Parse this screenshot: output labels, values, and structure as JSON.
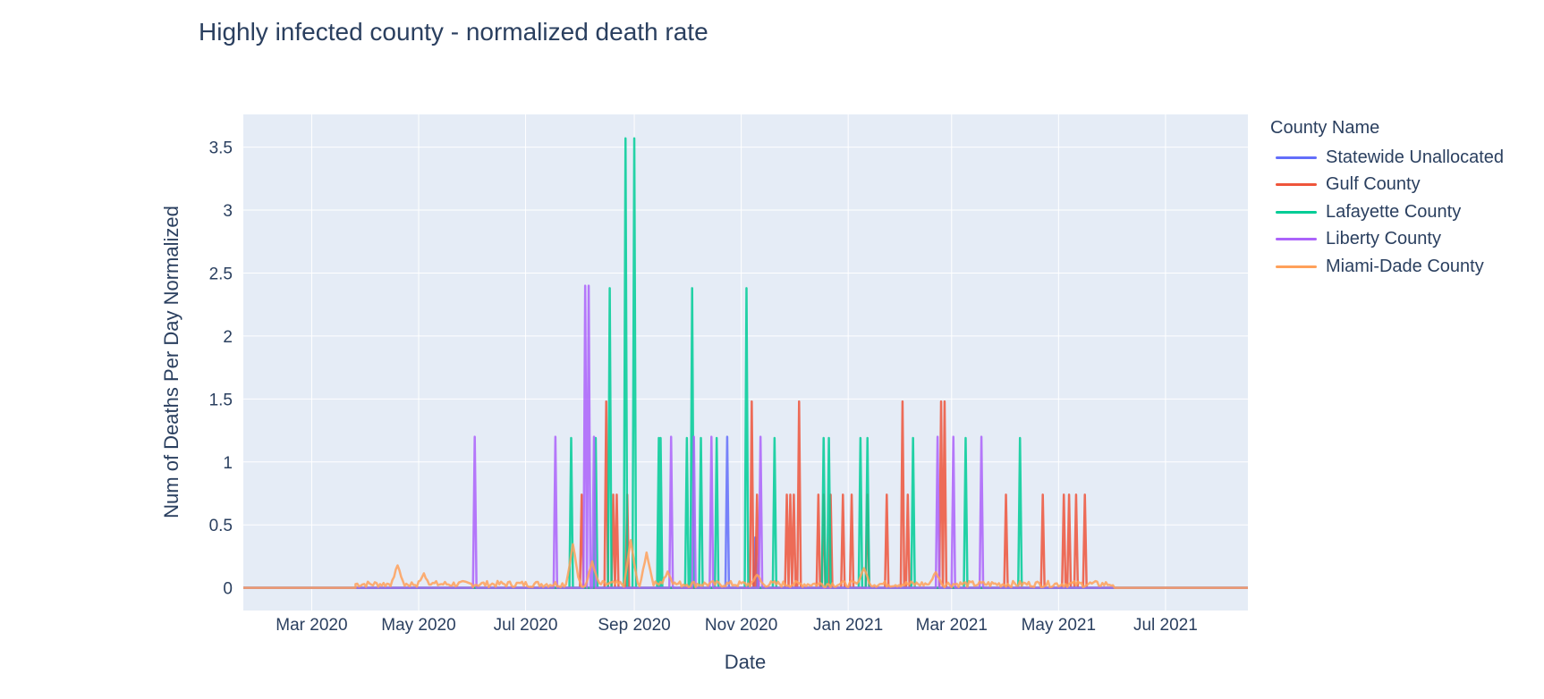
{
  "chart_data": {
    "type": "line",
    "title": "Highly infected county - normalized death rate",
    "xlabel": "Date",
    "ylabel": "Num of Deaths Per Day Normalized",
    "legend_title": "County Name",
    "legend_position": "right",
    "grid": true,
    "x_range": [
      "2020-01-22",
      "2021-08-17"
    ],
    "y_range": [
      -0.18,
      3.76
    ],
    "x_ticks": [
      {
        "date": "2020-03-01",
        "label": "Mar 2020"
      },
      {
        "date": "2020-05-01",
        "label": "May 2020"
      },
      {
        "date": "2020-07-01",
        "label": "Jul 2020"
      },
      {
        "date": "2020-09-01",
        "label": "Sep 2020"
      },
      {
        "date": "2020-11-01",
        "label": "Nov 2020"
      },
      {
        "date": "2021-01-01",
        "label": "Jan 2021"
      },
      {
        "date": "2021-03-01",
        "label": "Mar 2021"
      },
      {
        "date": "2021-05-01",
        "label": "May 2021"
      },
      {
        "date": "2021-07-01",
        "label": "Jul 2021"
      }
    ],
    "y_ticks": [
      {
        "value": 0,
        "label": "0"
      },
      {
        "value": 0.5,
        "label": "0.5"
      },
      {
        "value": 1,
        "label": "1"
      },
      {
        "value": 1.5,
        "label": "1.5"
      },
      {
        "value": 2,
        "label": "2"
      },
      {
        "value": 2.5,
        "label": "2.5"
      },
      {
        "value": 3,
        "label": "3"
      },
      {
        "value": 3.5,
        "label": "3.5"
      }
    ],
    "series": [
      {
        "name": "Statewide Unallocated",
        "color": "#636efa",
        "baseline": [
          "2020-01-22",
          "2021-08-17"
        ],
        "spikes": [
          [
            "2020-10-24",
            1.2
          ],
          [
            "2020-11-09",
            0.4
          ]
        ]
      },
      {
        "name": "Gulf County",
        "color": "#EF553B",
        "baseline": [
          "2020-01-22",
          "2021-08-17"
        ],
        "spikes": [
          [
            "2020-08-02",
            0.74
          ],
          [
            "2020-08-16",
            1.48
          ],
          [
            "2020-08-20",
            0.74
          ],
          [
            "2020-08-22",
            0.74
          ],
          [
            "2020-08-28",
            0.74
          ],
          [
            "2020-11-07",
            1.48
          ],
          [
            "2020-11-10",
            0.74
          ],
          [
            "2020-11-27",
            0.74
          ],
          [
            "2020-11-29",
            0.74
          ],
          [
            "2020-12-01",
            0.74
          ],
          [
            "2020-12-04",
            1.48
          ],
          [
            "2020-12-15",
            0.74
          ],
          [
            "2020-12-18",
            0.74
          ],
          [
            "2020-12-22",
            0.74
          ],
          [
            "2020-12-29",
            0.74
          ],
          [
            "2021-01-03",
            0.74
          ],
          [
            "2021-01-12",
            0.74
          ],
          [
            "2021-01-23",
            0.74
          ],
          [
            "2021-02-01",
            1.48
          ],
          [
            "2021-02-04",
            0.74
          ],
          [
            "2021-02-23",
            1.48
          ],
          [
            "2021-02-25",
            1.48
          ],
          [
            "2021-04-01",
            0.74
          ],
          [
            "2021-04-22",
            0.74
          ],
          [
            "2021-05-04",
            0.74
          ],
          [
            "2021-05-07",
            0.74
          ],
          [
            "2021-05-11",
            0.74
          ],
          [
            "2021-05-16",
            0.74
          ]
        ]
      },
      {
        "name": "Lafayette County",
        "color": "#00cc96",
        "baseline": [
          "2020-01-22",
          "2021-08-17"
        ],
        "spikes": [
          [
            "2020-07-27",
            1.19
          ],
          [
            "2020-08-10",
            1.19
          ],
          [
            "2020-08-18",
            2.38
          ],
          [
            "2020-08-27",
            3.57
          ],
          [
            "2020-09-01",
            3.57
          ],
          [
            "2020-09-15",
            1.19
          ],
          [
            "2020-09-16",
            1.19
          ],
          [
            "2020-10-01",
            1.19
          ],
          [
            "2020-10-04",
            2.38
          ],
          [
            "2020-10-09",
            1.19
          ],
          [
            "2020-10-18",
            1.19
          ],
          [
            "2020-11-04",
            2.38
          ],
          [
            "2020-11-20",
            1.19
          ],
          [
            "2020-12-18",
            1.19
          ],
          [
            "2020-12-21",
            1.19
          ],
          [
            "2021-01-08",
            1.19
          ],
          [
            "2021-01-12",
            1.19
          ],
          [
            "2021-02-07",
            1.19
          ],
          [
            "2021-03-09",
            1.19
          ],
          [
            "2021-04-09",
            1.19
          ]
        ]
      },
      {
        "name": "Liberty County",
        "color": "#ab63fa",
        "baseline": [
          "2020-01-22",
          "2021-08-17"
        ],
        "spikes": [
          [
            "2020-06-02",
            1.2
          ],
          [
            "2020-07-18",
            1.2
          ],
          [
            "2020-08-04",
            2.4
          ],
          [
            "2020-08-06",
            2.4
          ],
          [
            "2020-08-09",
            1.2
          ],
          [
            "2020-09-22",
            1.2
          ],
          [
            "2020-10-05",
            1.2
          ],
          [
            "2020-10-15",
            1.2
          ],
          [
            "2020-11-12",
            1.2
          ],
          [
            "2021-02-21",
            1.2
          ],
          [
            "2021-03-02",
            1.2
          ],
          [
            "2021-03-18",
            1.2
          ]
        ]
      },
      {
        "name": "Miami-Dade County",
        "color": "#FFA15A",
        "start": "2020-03-26",
        "end": "2021-06-01",
        "noise_level": 0.05,
        "peaks": [
          [
            "2020-04-19",
            0.17
          ],
          [
            "2020-05-04",
            0.1
          ],
          [
            "2020-07-28",
            0.34
          ],
          [
            "2020-08-08",
            0.2
          ],
          [
            "2020-08-30",
            0.37
          ],
          [
            "2020-09-08",
            0.27
          ],
          [
            "2020-09-20",
            0.12
          ],
          [
            "2020-11-10",
            0.1
          ],
          [
            "2021-01-10",
            0.15
          ],
          [
            "2021-02-20",
            0.12
          ]
        ]
      }
    ]
  }
}
